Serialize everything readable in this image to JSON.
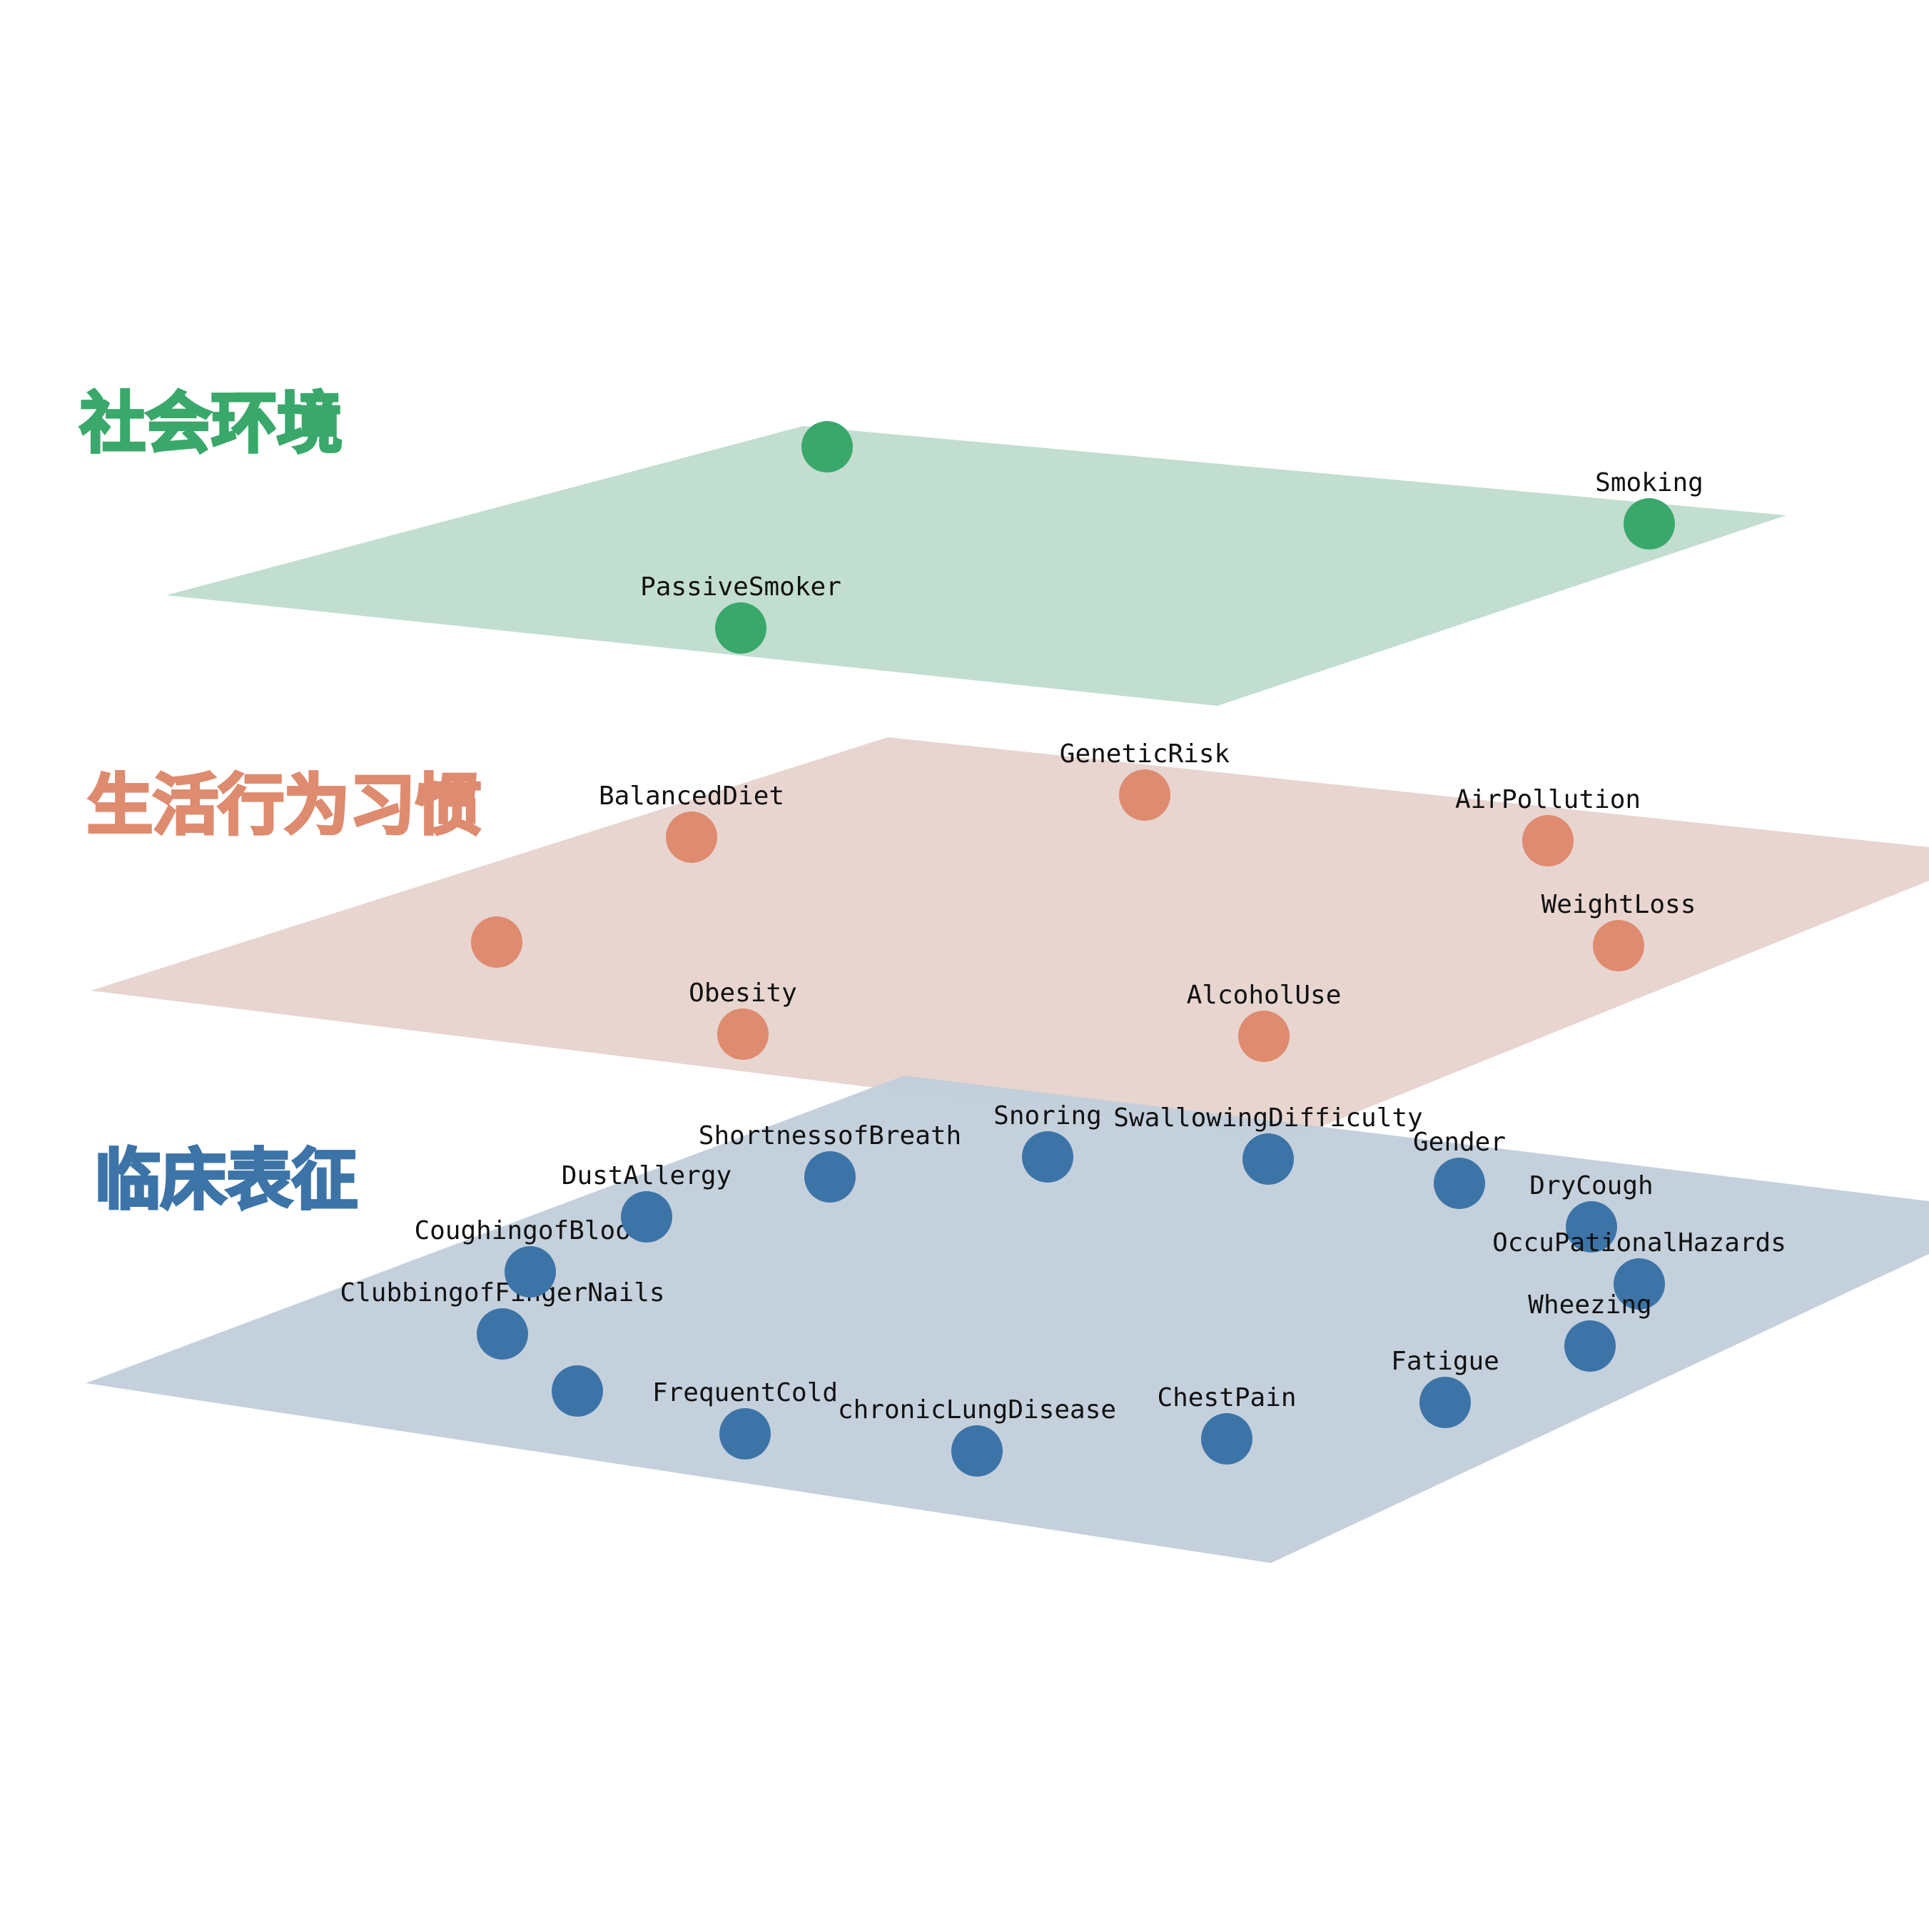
{
  "layers": [
    {
      "id": "social",
      "title": "社会环境",
      "color": "#3aa86b",
      "plane_color": "#bfdccd",
      "nodes": [
        {
          "label": ""
        },
        {
          "label": "Smoking"
        },
        {
          "label": "PassiveSmoker"
        }
      ]
    },
    {
      "id": "lifestyle",
      "title": "生活行为习惯",
      "color": "#de8b6f",
      "plane_color": "#e7d3cd",
      "nodes": [
        {
          "label": "BalancedDiet"
        },
        {
          "label": "GeneticRisk"
        },
        {
          "label": "AirPollution"
        },
        {
          "label": "WeightLoss"
        },
        {
          "label": ""
        },
        {
          "label": "Obesity"
        },
        {
          "label": "AlcoholUse"
        }
      ]
    },
    {
      "id": "clinical",
      "title": "临床表征",
      "color": "#3d74a8",
      "plane_color": "#c1cfdb",
      "nodes": [
        {
          "label": "ShortnessofBreath"
        },
        {
          "label": "Snoring"
        },
        {
          "label": "SwallowingDifficulty"
        },
        {
          "label": "Gender"
        },
        {
          "label": "DryCough"
        },
        {
          "label": "OccuPationalHazards"
        },
        {
          "label": "Wheezing"
        },
        {
          "label": "Fatigue"
        },
        {
          "label": "ChestPain"
        },
        {
          "label": "chronicLungDisease"
        },
        {
          "label": "FrequentCold"
        },
        {
          "label": ""
        },
        {
          "label": "ClubbingofFingerNails"
        },
        {
          "label": "CoughingofBlood"
        },
        {
          "label": "DustAllergy"
        }
      ]
    }
  ]
}
